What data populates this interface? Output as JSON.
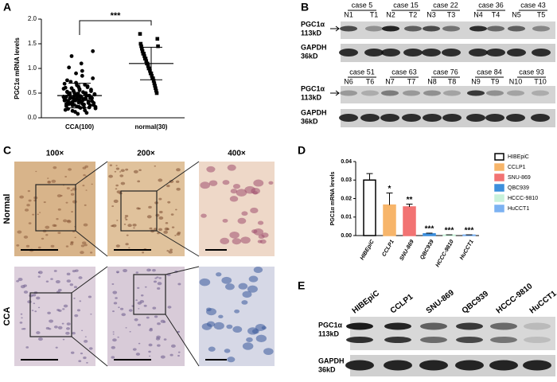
{
  "panel_labels": [
    "A",
    "B",
    "C",
    "D",
    "E"
  ],
  "chart_data": [
    {
      "type": "strip",
      "y_label": "PGC1α mRNA levels",
      "significance": "***",
      "ylim": [
        0,
        2.0
      ],
      "yticks": [
        {
          "value": 0,
          "label": "0.0"
        },
        {
          "value": 0.5,
          "label": "0.5"
        },
        {
          "value": 1.0,
          "label": "1.0"
        },
        {
          "value": 1.5,
          "label": "1.5"
        },
        {
          "value": 2.0,
          "label": "2.0"
        }
      ],
      "groups": [
        {
          "label": "CCA(100)",
          "marker": "circle",
          "color": "#000000",
          "mean": 0.45,
          "sd": 0.25,
          "values": [
            0.42,
            0.35,
            0.61,
            0.28,
            0.52,
            0.18,
            0.47,
            0.39,
            0.73,
            0.31,
            0.25,
            0.55,
            0.44,
            0.12,
            0.36,
            0.66,
            0.49,
            0.22,
            0.58,
            0.41,
            0.33,
            0.95,
            0.27,
            0.38,
            0.15,
            0.5,
            0.45,
            0.62,
            0.3,
            0.21,
            0.4,
            0.57,
            0.34,
            0.8,
            0.26,
            0.48,
            0.19,
            0.43,
            0.69,
            0.37,
            0.24,
            0.53,
            0.32,
            1.02,
            0.46,
            0.29,
            0.6,
            0.14,
            0.39,
            0.51,
            0.35,
            0.71,
            0.23,
            0.44,
            0.31,
            0.56,
            0.2,
            0.42,
            0.85,
            0.36,
            0.27,
            0.49,
            0.38,
            0.1,
            0.64,
            0.33,
            0.45,
            0.25,
            0.54,
            0.4,
            1.35,
            0.3,
            0.47,
            0.22,
            0.59,
            0.37,
            0.16,
            0.43,
            0.76,
            0.34,
            0.28,
            0.5,
            0.41,
            1.25,
            0.32,
            0.55,
            0.26,
            0.46,
            0.9,
            0.39,
            0.08,
            0.62,
            0.35,
            0.44,
            1.1,
            0.29,
            0.52,
            0.21,
            0.67,
            0.4
          ]
        },
        {
          "label": "normal(30)",
          "marker": "square",
          "color": "#000000",
          "mean": 1.1,
          "sd": 0.33,
          "values": [
            1.7,
            1.5,
            1.45,
            1.4,
            1.35,
            1.3,
            1.3,
            1.25,
            1.2,
            1.2,
            1.15,
            1.1,
            1.1,
            1.05,
            1.0,
            1.0,
            0.95,
            0.9,
            0.9,
            0.85,
            0.8,
            0.8,
            0.75,
            0.7,
            0.65,
            0.6,
            0.55,
            0.5,
            1.6,
            1.45
          ]
        }
      ]
    },
    {
      "type": "bar",
      "y_label": "PGC1α  mRNA levels",
      "categories": [
        "HIBEpiC",
        "CCLP1",
        "SNU-869",
        "QBC939",
        "HCCC-9810",
        "HuCCT1"
      ],
      "values": [
        0.03,
        0.0165,
        0.0155,
        0.001,
        0.0003,
        0.0003
      ],
      "errors": [
        0.0035,
        0.0065,
        0.0015,
        0.0003,
        0.0001,
        0.0001
      ],
      "colors": [
        "#ffffff",
        "#f7b56a",
        "#f27373",
        "#3d8fdc",
        "#c9f2da",
        "#7cb2f2"
      ],
      "annotations": [
        null,
        "*",
        "**",
        "***",
        "***",
        "***"
      ],
      "legend": "right",
      "ylim": [
        0,
        0.04
      ],
      "yticks": [
        {
          "value": 0,
          "label": "0.00"
        },
        {
          "value": 0.01,
          "label": "0.01"
        },
        {
          "value": 0.02,
          "label": "0.02"
        },
        {
          "value": 0.03,
          "label": "0.03"
        },
        {
          "value": 0.04,
          "label": "0.04"
        }
      ]
    }
  ],
  "blot_b": {
    "markers": [
      {
        "protein": "PGC1α",
        "size": "113kD"
      },
      {
        "protein": "GAPDH",
        "size": "36kD"
      }
    ],
    "rows": [
      {
        "cases": [
          "case 5",
          "case 15",
          "case 22",
          "case 36",
          "case 43"
        ],
        "lanes": [
          "N1",
          "T1",
          "N2",
          "T2",
          "N3",
          "T3",
          "N4",
          "T4",
          "N5",
          "T5"
        ]
      },
      {
        "cases": [
          "case 51",
          "case 63",
          "case 76",
          "case 84",
          "case 93"
        ],
        "lanes": [
          "N6",
          "T6",
          "N7",
          "T7",
          "N8",
          "T8",
          "N9",
          "T9",
          "N10",
          "T10"
        ]
      }
    ]
  },
  "histology_c": {
    "magnifications": [
      "100×",
      "200×",
      "400×"
    ],
    "rows": [
      "Normal",
      "CCA"
    ]
  },
  "blot_e": {
    "lanes": [
      "HIBEpiC",
      "CCLP1",
      "SNU-869",
      "QBC939",
      "HCCC-9810",
      "HuCCT1"
    ],
    "markers": [
      {
        "protein": "PGC1α",
        "size": "113kD"
      },
      {
        "protein": "GAPDH",
        "size": "36kD"
      }
    ]
  }
}
